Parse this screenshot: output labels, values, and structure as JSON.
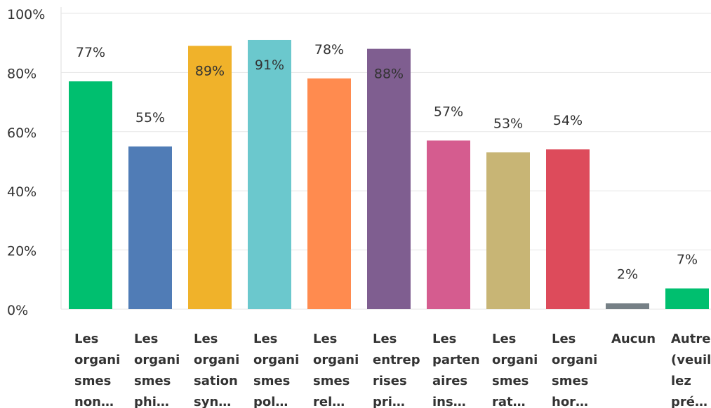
{
  "chart_data": {
    "type": "bar",
    "categories": [
      [
        "Les",
        "organi",
        "smes",
        "non…"
      ],
      [
        "Les",
        "organi",
        "smes",
        "phi…"
      ],
      [
        "Les",
        "organi",
        "sation",
        "syn…"
      ],
      [
        "Les",
        "organi",
        "smes",
        "pol…"
      ],
      [
        "Les",
        "organi",
        "smes",
        "rel…"
      ],
      [
        "Les",
        "entrep",
        "rises",
        "pri…"
      ],
      [
        "Les",
        "parten",
        "aires",
        "ins…"
      ],
      [
        "Les",
        "organi",
        "smes",
        "rat…"
      ],
      [
        "Les",
        "organi",
        "smes",
        "hor…"
      ],
      [
        "Aucun"
      ],
      [
        "Autre",
        "(veuil",
        "lez",
        "pré…"
      ]
    ],
    "values": [
      77,
      55,
      89,
      91,
      78,
      88,
      57,
      53,
      54,
      2,
      7
    ],
    "value_labels": [
      "77%",
      "55%",
      "89%",
      "91%",
      "78%",
      "88%",
      "57%",
      "53%",
      "54%",
      "2%",
      "7%"
    ],
    "colors": [
      "#00bf6f",
      "#507cb6",
      "#f0b22a",
      "#6bc8cd",
      "#ff8b4f",
      "#7f5e90",
      "#d55c8f",
      "#c8b575",
      "#dd4b5b",
      "#768086",
      "#00bf6f"
    ],
    "ylim": [
      0,
      100
    ],
    "yticks": [
      {
        "value": 0,
        "label": "0%"
      },
      {
        "value": 20,
        "label": "20%"
      },
      {
        "value": 40,
        "label": "40%"
      },
      {
        "value": 60,
        "label": "60%"
      },
      {
        "value": 80,
        "label": "80%"
      },
      {
        "value": 100,
        "label": "100%"
      }
    ],
    "grid": true
  }
}
